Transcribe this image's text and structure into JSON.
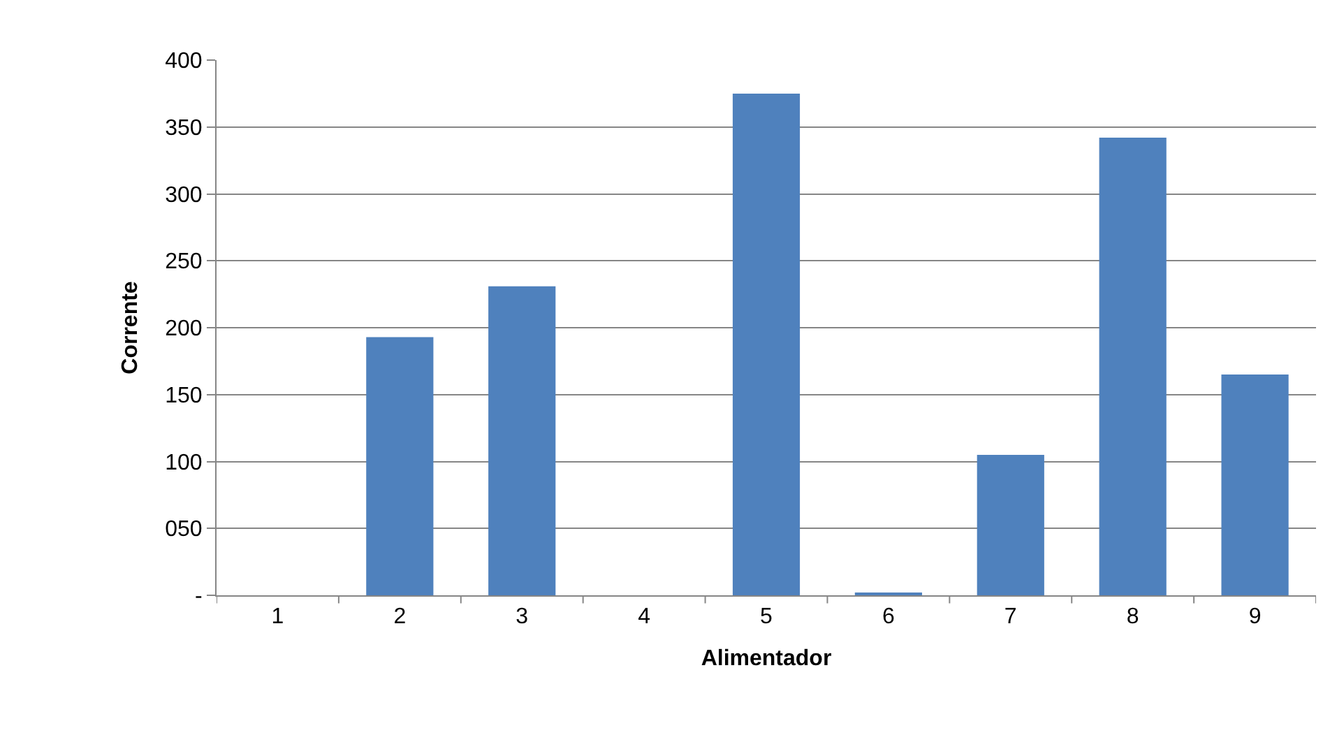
{
  "chart_data": {
    "type": "bar",
    "xlabel": "Alimentador",
    "ylabel": "Corrente",
    "categories": [
      "1",
      "2",
      "3",
      "4",
      "5",
      "6",
      "7",
      "8",
      "9"
    ],
    "values": [
      0,
      193,
      231,
      0,
      375,
      2,
      105,
      342,
      165
    ],
    "color": "#4f81bd",
    "ylim": [
      0,
      400
    ],
    "yticks": [
      {
        "value": 0,
        "label": "-"
      },
      {
        "value": 50,
        "label": "050"
      },
      100,
      150,
      200,
      250,
      300,
      350,
      400
    ],
    "grid": "y"
  }
}
